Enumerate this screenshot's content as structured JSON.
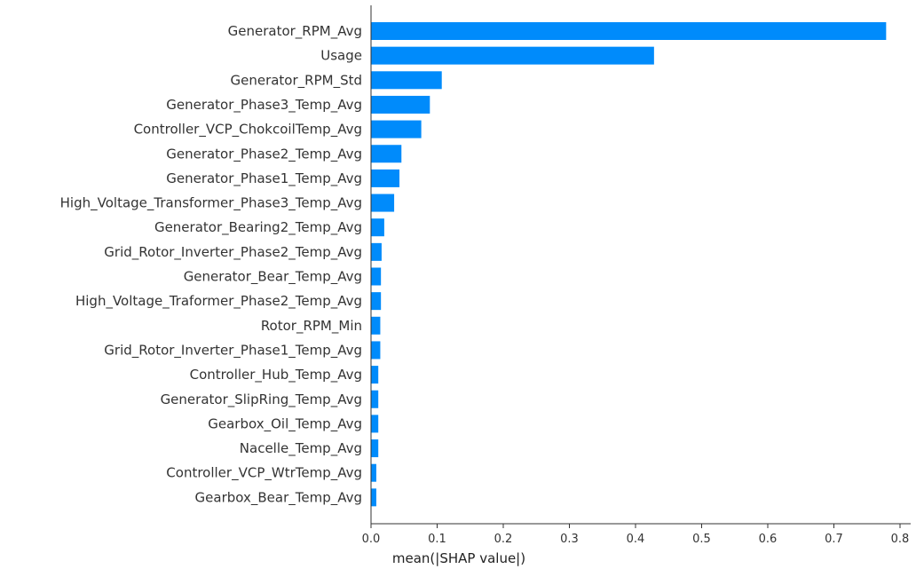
{
  "chart_data": {
    "type": "bar",
    "orientation": "horizontal",
    "categories": [
      "Generator_RPM_Avg",
      "Usage",
      "Generator_RPM_Std",
      "Generator_Phase3_Temp_Avg",
      "Controller_VCP_ChokcoilTemp_Avg",
      "Generator_Phase2_Temp_Avg",
      "Generator_Phase1_Temp_Avg",
      "High_Voltage_Transformer_Phase3_Temp_Avg",
      "Generator_Bearing2_Temp_Avg",
      "Grid_Rotor_Inverter_Phase2_Temp_Avg",
      "Generator_Bear_Temp_Avg",
      "High_Voltage_Traformer_Phase2_Temp_Avg",
      "Rotor_RPM_Min",
      "Grid_Rotor_Inverter_Phase1_Temp_Avg",
      "Controller_Hub_Temp_Avg",
      "Generator_SlipRing_Temp_Avg",
      "Gearbox_Oil_Temp_Avg",
      "Nacelle_Temp_Avg",
      "Controller_VCP_WtrTemp_Avg",
      "Gearbox_Bear_Temp_Avg"
    ],
    "values": [
      0.779,
      0.428,
      0.107,
      0.089,
      0.076,
      0.046,
      0.043,
      0.035,
      0.02,
      0.016,
      0.015,
      0.015,
      0.014,
      0.014,
      0.011,
      0.011,
      0.011,
      0.011,
      0.008,
      0.008
    ],
    "xlabel": "mean(|SHAP value|)",
    "ylabel": "",
    "title": "",
    "xlim": [
      0,
      0.8
    ],
    "xticks": [
      "0.0",
      "0.1",
      "0.2",
      "0.3",
      "0.4",
      "0.5",
      "0.6",
      "0.7",
      "0.8"
    ],
    "grid": false,
    "bar_color": "#008bfb",
    "axis_color": "#333333"
  }
}
